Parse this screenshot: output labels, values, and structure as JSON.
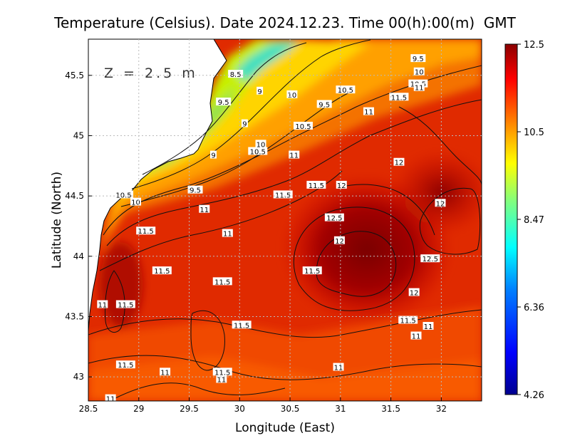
{
  "chart_data": {
    "type": "heatmap",
    "title": "Temperature (Celsius). Date 2024.12.23. Time 00(h):00(m)  GMT",
    "xlabel": "Longitude (East)",
    "ylabel": "Latitude (North)",
    "depth_label": "Z = 2.5 m",
    "xlim": [
      28.5,
      32.4
    ],
    "ylim": [
      42.8,
      45.8
    ],
    "xticks": [
      "28.5",
      "29",
      "29.5",
      "30",
      "30.5",
      "31",
      "31.5",
      "32"
    ],
    "yticks": [
      "43",
      "43.5",
      "44",
      "44.5",
      "45",
      "45.5"
    ],
    "grid": true,
    "colorbar": {
      "min": 4.26,
      "max": 12.5,
      "tick_labels": [
        "12.5",
        "10.5",
        "8.47",
        "6.36",
        "4.26"
      ],
      "palette": [
        "#00008f",
        "#0000ff",
        "#0080ff",
        "#00ffff",
        "#80ff80",
        "#ffff00",
        "#ff8000",
        "#ff0000",
        "#8b0000"
      ]
    },
    "contour_labels": [
      {
        "text": "9.5",
        "lon": 31.77,
        "lat": 45.64
      },
      {
        "text": "10",
        "lon": 31.78,
        "lat": 45.53
      },
      {
        "text": "10.5",
        "lon": 31.77,
        "lat": 45.43
      },
      {
        "text": "11",
        "lon": 31.78,
        "lat": 45.4
      },
      {
        "text": "11.5",
        "lon": 31.58,
        "lat": 45.32
      },
      {
        "text": "10.5",
        "lon": 31.05,
        "lat": 45.38
      },
      {
        "text": "10",
        "lon": 30.52,
        "lat": 45.34
      },
      {
        "text": "9.5",
        "lon": 30.84,
        "lat": 45.26
      },
      {
        "text": "11",
        "lon": 31.28,
        "lat": 45.2
      },
      {
        "text": "8.5",
        "lon": 29.96,
        "lat": 45.51
      },
      {
        "text": "9",
        "lon": 30.2,
        "lat": 45.37
      },
      {
        "text": "9.5",
        "lon": 29.84,
        "lat": 45.28
      },
      {
        "text": "9",
        "lon": 30.05,
        "lat": 45.1
      },
      {
        "text": "10.5",
        "lon": 30.63,
        "lat": 45.08
      },
      {
        "text": "10",
        "lon": 30.21,
        "lat": 44.93
      },
      {
        "text": "10.5",
        "lon": 30.18,
        "lat": 44.87
      },
      {
        "text": "11",
        "lon": 30.54,
        "lat": 44.84
      },
      {
        "text": "9",
        "lon": 29.74,
        "lat": 44.84
      },
      {
        "text": "12",
        "lon": 31.58,
        "lat": 44.78
      },
      {
        "text": "11.5",
        "lon": 30.76,
        "lat": 44.59
      },
      {
        "text": "12",
        "lon": 31.01,
        "lat": 44.59
      },
      {
        "text": "11.5",
        "lon": 30.43,
        "lat": 44.51
      },
      {
        "text": "9.5",
        "lon": 29.56,
        "lat": 44.55
      },
      {
        "text": "10.5",
        "lon": 28.85,
        "lat": 44.51
      },
      {
        "text": "10",
        "lon": 28.97,
        "lat": 44.45
      },
      {
        "text": "11",
        "lon": 29.65,
        "lat": 44.39
      },
      {
        "text": "12",
        "lon": 31.99,
        "lat": 44.44
      },
      {
        "text": "12.5",
        "lon": 30.94,
        "lat": 44.32
      },
      {
        "text": "11.5",
        "lon": 29.07,
        "lat": 44.21
      },
      {
        "text": "11",
        "lon": 29.88,
        "lat": 44.19
      },
      {
        "text": "12",
        "lon": 30.99,
        "lat": 44.13
      },
      {
        "text": "12.5",
        "lon": 31.89,
        "lat": 43.98
      },
      {
        "text": "11.5",
        "lon": 29.23,
        "lat": 43.88
      },
      {
        "text": "11.5",
        "lon": 30.72,
        "lat": 43.88
      },
      {
        "text": "11.5",
        "lon": 29.83,
        "lat": 43.79
      },
      {
        "text": "12",
        "lon": 31.73,
        "lat": 43.7
      },
      {
        "text": "11",
        "lon": 28.64,
        "lat": 43.6
      },
      {
        "text": "11.5",
        "lon": 28.87,
        "lat": 43.6
      },
      {
        "text": "11.5",
        "lon": 31.67,
        "lat": 43.47
      },
      {
        "text": "11",
        "lon": 31.87,
        "lat": 43.42
      },
      {
        "text": "11.5",
        "lon": 30.02,
        "lat": 43.43
      },
      {
        "text": "11",
        "lon": 31.75,
        "lat": 43.34
      },
      {
        "text": "11",
        "lon": 30.98,
        "lat": 43.08
      },
      {
        "text": "11.5",
        "lon": 28.87,
        "lat": 43.1
      },
      {
        "text": "11",
        "lon": 29.26,
        "lat": 43.04
      },
      {
        "text": "11.5",
        "lon": 29.83,
        "lat": 43.04
      },
      {
        "text": "11",
        "lon": 29.82,
        "lat": 42.98
      },
      {
        "text": "11",
        "lon": 28.72,
        "lat": 42.82
      }
    ]
  }
}
